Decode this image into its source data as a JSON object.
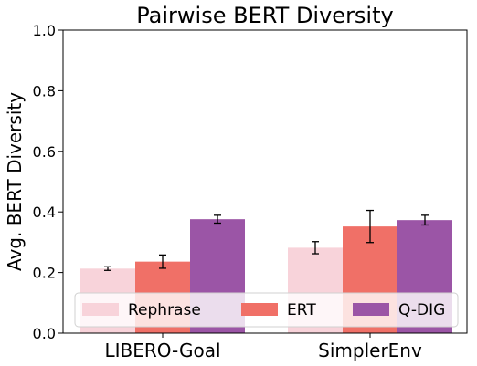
{
  "chart_data": {
    "type": "bar",
    "title": "Pairwise BERT Diversity",
    "xlabel": "",
    "ylabel": "Avg. BERT Diversity",
    "ylim": [
      0,
      1.0
    ],
    "yticks": [
      "0.0",
      "0.2",
      "0.4",
      "0.6",
      "0.8",
      "1.0"
    ],
    "categories": [
      "LIBERO-Goal",
      "SimplerEnv"
    ],
    "series": [
      {
        "name": "Rephrase",
        "color": "#f8d3da",
        "values": [
          0.213,
          0.282
        ],
        "errors": [
          0.006,
          0.02
        ]
      },
      {
        "name": "ERT",
        "color": "#f07067",
        "values": [
          0.236,
          0.352
        ],
        "errors": [
          0.022,
          0.053
        ]
      },
      {
        "name": "Q-DIG",
        "color": "#9b55a6",
        "values": [
          0.376,
          0.373
        ],
        "errors": [
          0.013,
          0.016
        ]
      }
    ],
    "grid": false,
    "legend": "bottom-center"
  }
}
